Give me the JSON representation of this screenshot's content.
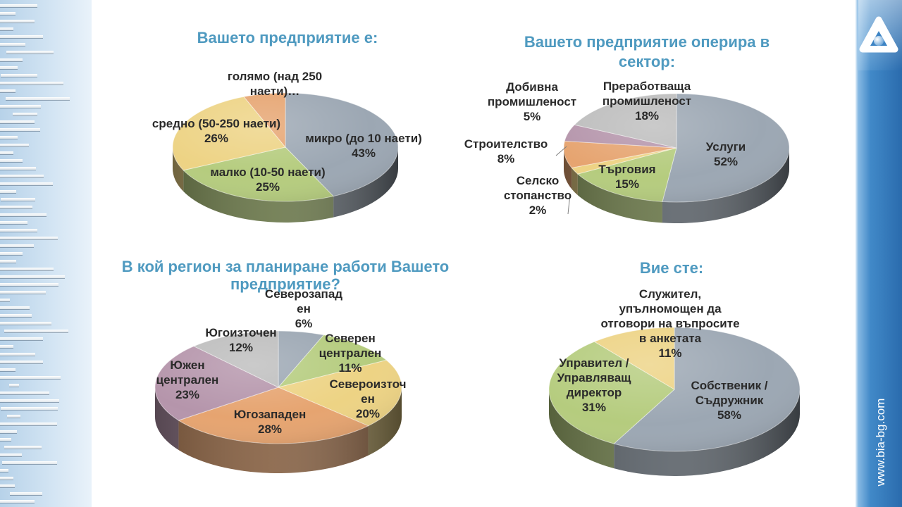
{
  "slide": {
    "brand_url": "www.bia-bg.com",
    "colors": {
      "title": "#4F9AC0",
      "label": "#2A2A2A"
    }
  },
  "chart_data": [
    {
      "type": "pie",
      "style": "3d",
      "title": "Вашето предприятие е:",
      "categories": [
        "микро (до 10 наети)",
        "малко (10-50 наети)",
        "средно (50-250 наети)",
        "голямо (над 250\nнаети)…"
      ],
      "values": [
        43,
        25,
        26,
        6
      ],
      "data_labels": [
        "43%",
        "25%",
        "26%",
        null
      ],
      "colors": [
        "#9CA7B3",
        "#B5CC7E",
        "#EDD384",
        "#E6A470"
      ],
      "legend": "none"
    },
    {
      "type": "pie",
      "style": "3d",
      "title": "Вашето предприятие оперира в\nсектор:",
      "categories": [
        "Услуги",
        "Търговия",
        "Селско\nстопанство",
        "Строителство",
        "Добивна\nпромишленост",
        "Преработваща\nпромишленост"
      ],
      "values": [
        52,
        15,
        2,
        8,
        5,
        18
      ],
      "data_labels": [
        "52%",
        "15%",
        "2%",
        "8%",
        "5%",
        "18%"
      ],
      "colors": [
        "#9CA7B3",
        "#B5CC7E",
        "#EDD384",
        "#E6A470",
        "#B595AB",
        "#BDBDBD"
      ],
      "legend": "none"
    },
    {
      "type": "pie",
      "style": "3d",
      "title": "В кой регион за планиране работи Вашето\nпредприятие?",
      "categories": [
        "Северозапад\nен",
        "Северен\nцентрален",
        "Североизточ\nен",
        "Югозападен",
        "Южен\nцентрален",
        "Югоизточен"
      ],
      "values": [
        6,
        11,
        20,
        28,
        23,
        12
      ],
      "data_labels": [
        "6%",
        "11%",
        "20%",
        "28%",
        "23%",
        "12%"
      ],
      "colors": [
        "#9CA7B3",
        "#B5CC7E",
        "#EDD384",
        "#E6A470",
        "#B595AB",
        "#BDBDBD"
      ],
      "legend": "none"
    },
    {
      "type": "pie",
      "style": "3d",
      "title": "Вие сте:",
      "categories": [
        "Собственик /\nСъдружник",
        "Управител /\nУправляващ\nдиректор",
        "Служител,\nупълномощен да\nотговори на въпросите\nв анкетата"
      ],
      "values": [
        58,
        31,
        11
      ],
      "data_labels": [
        "58%",
        "31%",
        "11%"
      ],
      "colors": [
        "#9CA7B3",
        "#B5CC7E",
        "#EDD384"
      ],
      "legend": "none"
    }
  ]
}
